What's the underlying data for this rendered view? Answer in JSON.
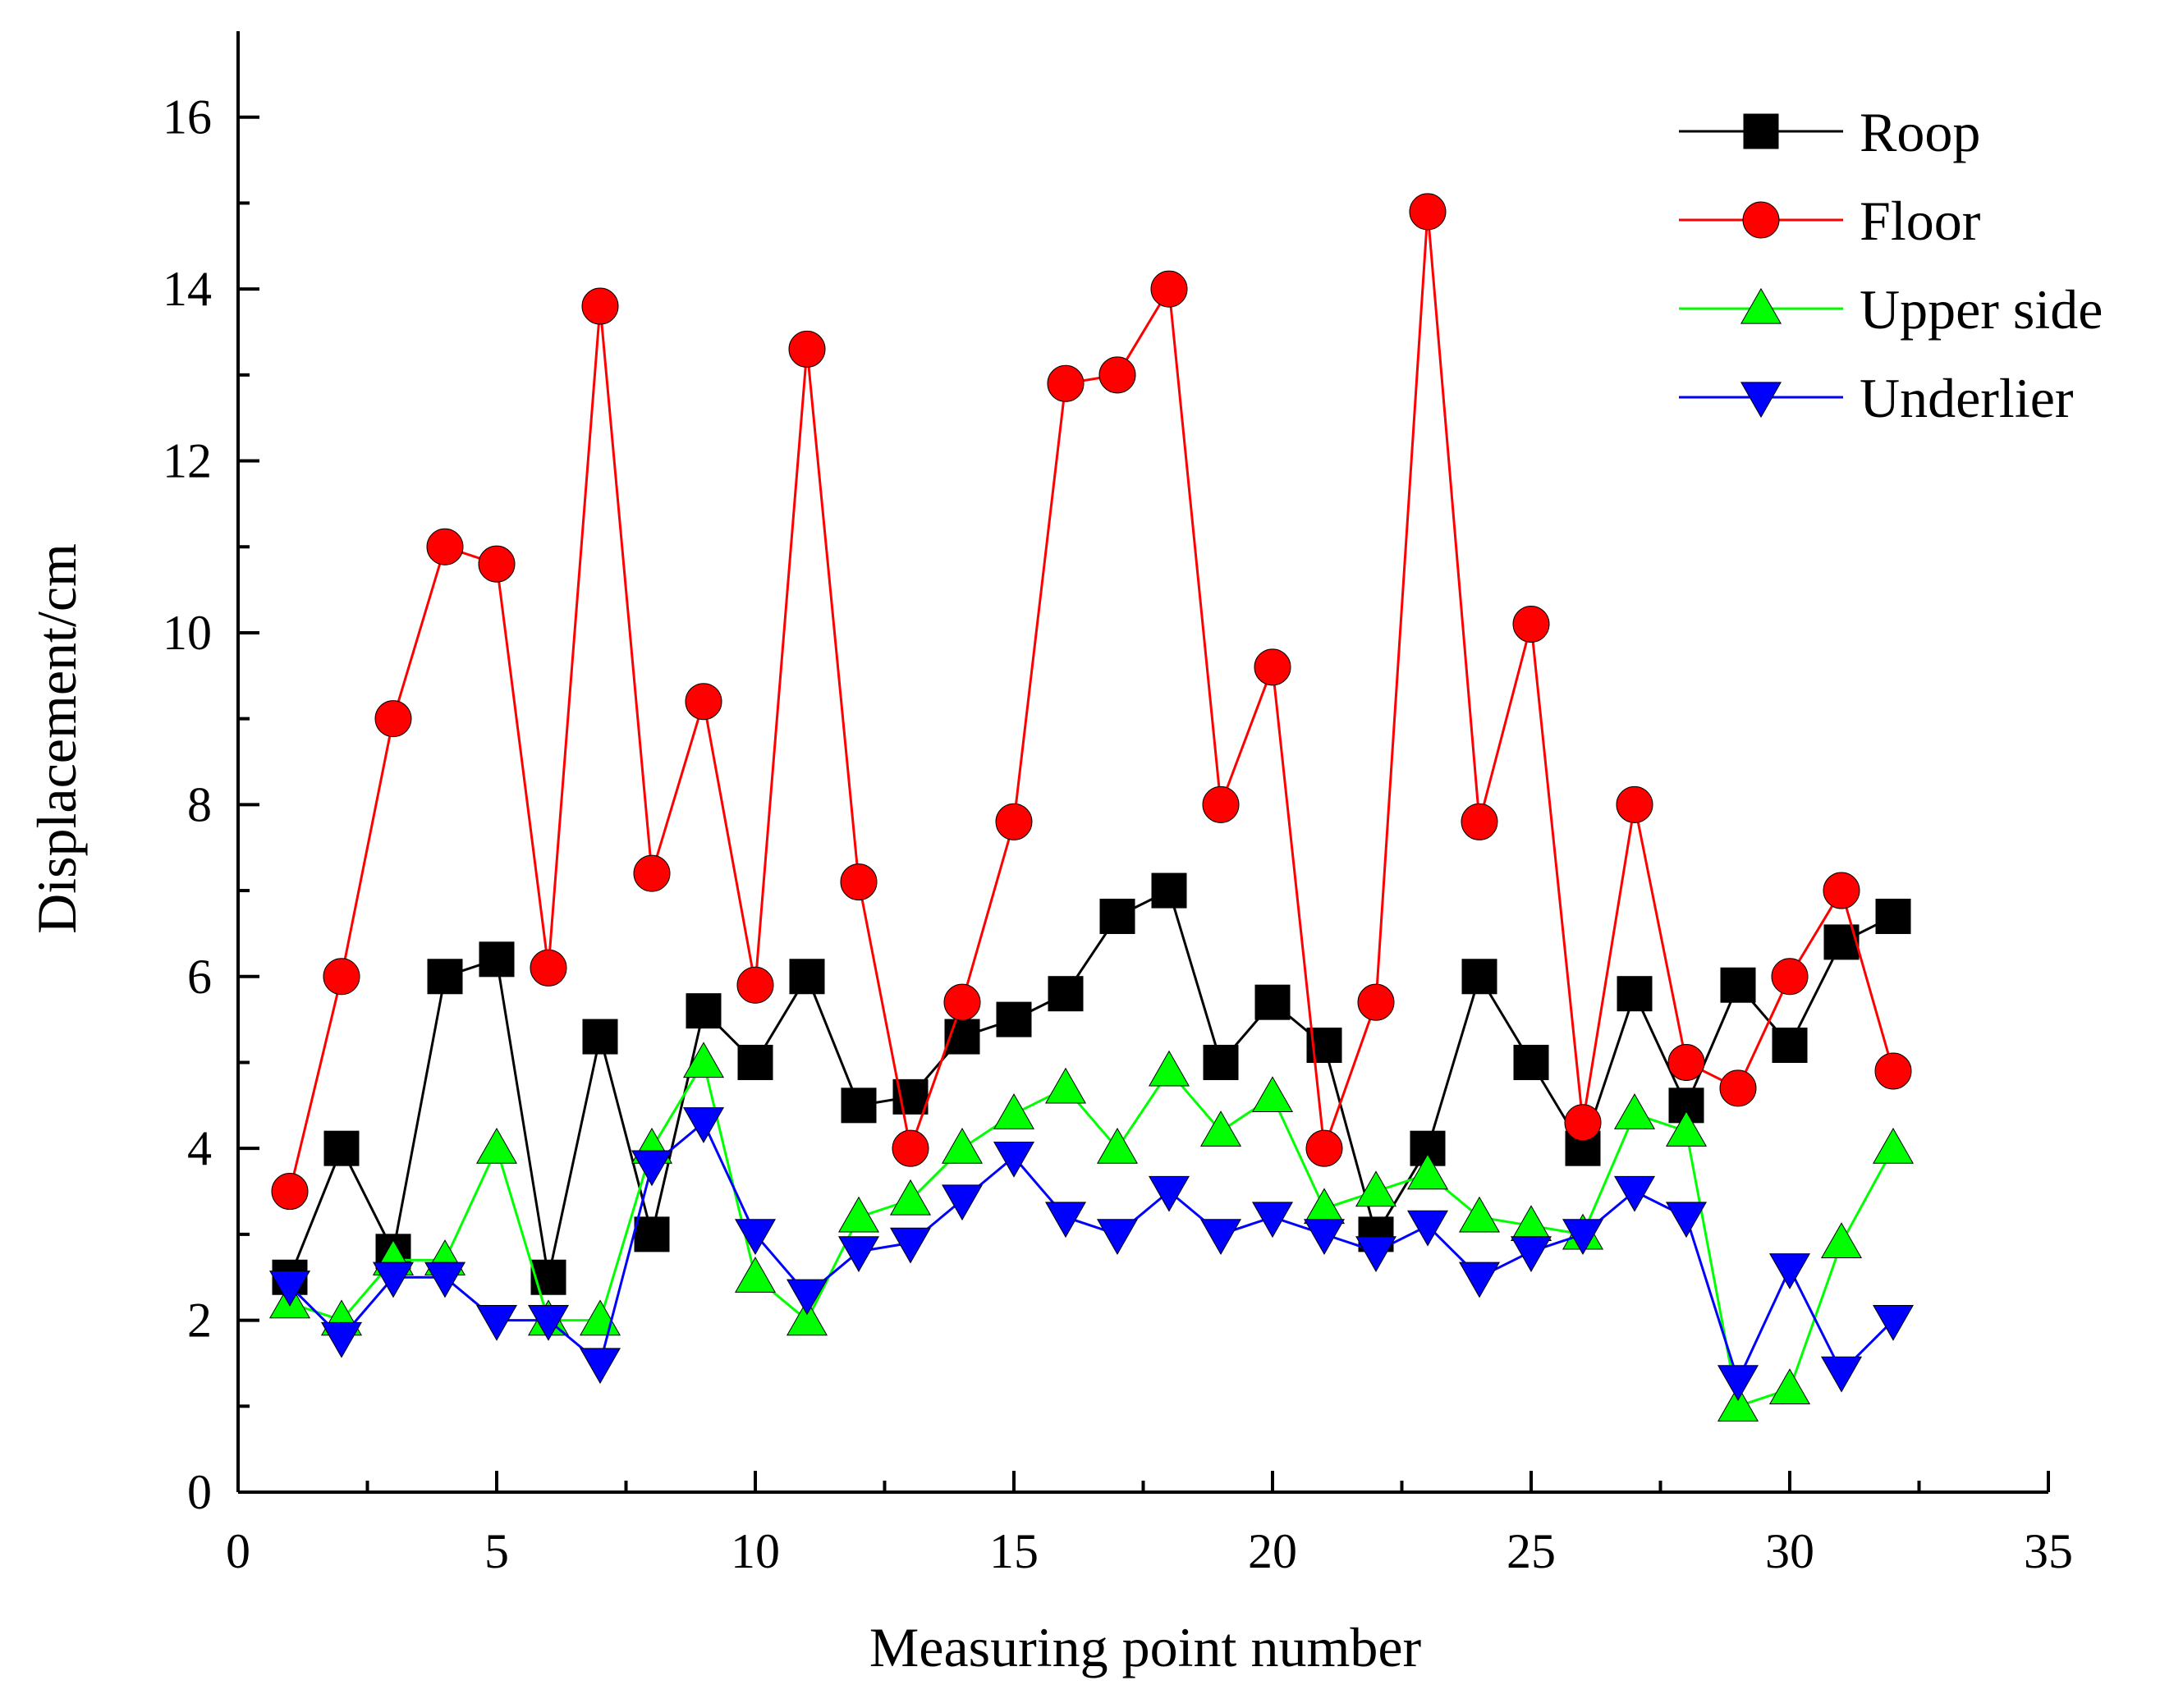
{
  "chart_data": {
    "type": "line",
    "title": "",
    "xlabel": "Measuring point number",
    "ylabel": "Displacement/cm",
    "xlim": [
      0,
      35
    ],
    "ylim": [
      0,
      17
    ],
    "xticks": [
      0,
      5,
      10,
      15,
      20,
      25,
      30,
      35
    ],
    "yticks": [
      0,
      2,
      4,
      6,
      8,
      10,
      12,
      14,
      16
    ],
    "grid": false,
    "legend_position": "top-right",
    "x": [
      1,
      2,
      3,
      4,
      5,
      6,
      7,
      8,
      9,
      10,
      11,
      12,
      13,
      14,
      15,
      16,
      17,
      18,
      19,
      20,
      21,
      22,
      23,
      24,
      25,
      26,
      27,
      28,
      29,
      30,
      31,
      32
    ],
    "series": [
      {
        "name": "Roop",
        "color": "#000000",
        "marker": "square",
        "values": [
          2.5,
          4.0,
          2.8,
          6.0,
          6.2,
          2.5,
          5.3,
          3.0,
          5.6,
          5.0,
          6.0,
          4.5,
          4.6,
          5.3,
          5.5,
          5.8,
          6.7,
          7.0,
          5.0,
          5.7,
          5.2,
          3.0,
          4.0,
          6.0,
          5.0,
          4.0,
          5.8,
          4.5,
          5.9,
          5.2,
          6.4,
          6.7
        ]
      },
      {
        "name": "Floor",
        "color": "#ff0000",
        "marker": "circle",
        "values": [
          3.5,
          6.0,
          9.0,
          11.0,
          10.8,
          6.1,
          13.8,
          7.2,
          9.2,
          5.9,
          13.3,
          7.1,
          4.0,
          5.7,
          7.8,
          12.9,
          13.0,
          14.0,
          8.0,
          9.6,
          4.0,
          5.7,
          14.9,
          7.8,
          10.1,
          4.3,
          8.0,
          5.0,
          4.7,
          6.0,
          7.0,
          4.9
        ]
      },
      {
        "name": "Upper side",
        "color": "#00ff00",
        "marker": "triangle-up",
        "values": [
          2.2,
          2.0,
          2.7,
          2.7,
          4.0,
          2.0,
          2.0,
          4.0,
          5.0,
          2.5,
          2.0,
          3.2,
          3.4,
          4.0,
          4.4,
          4.7,
          4.0,
          4.9,
          4.2,
          4.6,
          3.3,
          3.5,
          3.7,
          3.2,
          3.1,
          3.0,
          4.4,
          4.2,
          1.0,
          1.2,
          2.9,
          4.0
        ]
      },
      {
        "name": "Underlier",
        "color": "#0000ff",
        "marker": "triangle-down",
        "values": [
          2.4,
          1.8,
          2.5,
          2.5,
          2.0,
          2.0,
          1.5,
          3.8,
          4.3,
          3.0,
          2.3,
          2.8,
          2.9,
          3.4,
          3.9,
          3.2,
          3.0,
          3.5,
          3.0,
          3.2,
          3.0,
          2.8,
          3.1,
          2.5,
          2.8,
          3.0,
          3.5,
          3.2,
          1.3,
          2.6,
          1.4,
          2.0
        ]
      }
    ]
  }
}
